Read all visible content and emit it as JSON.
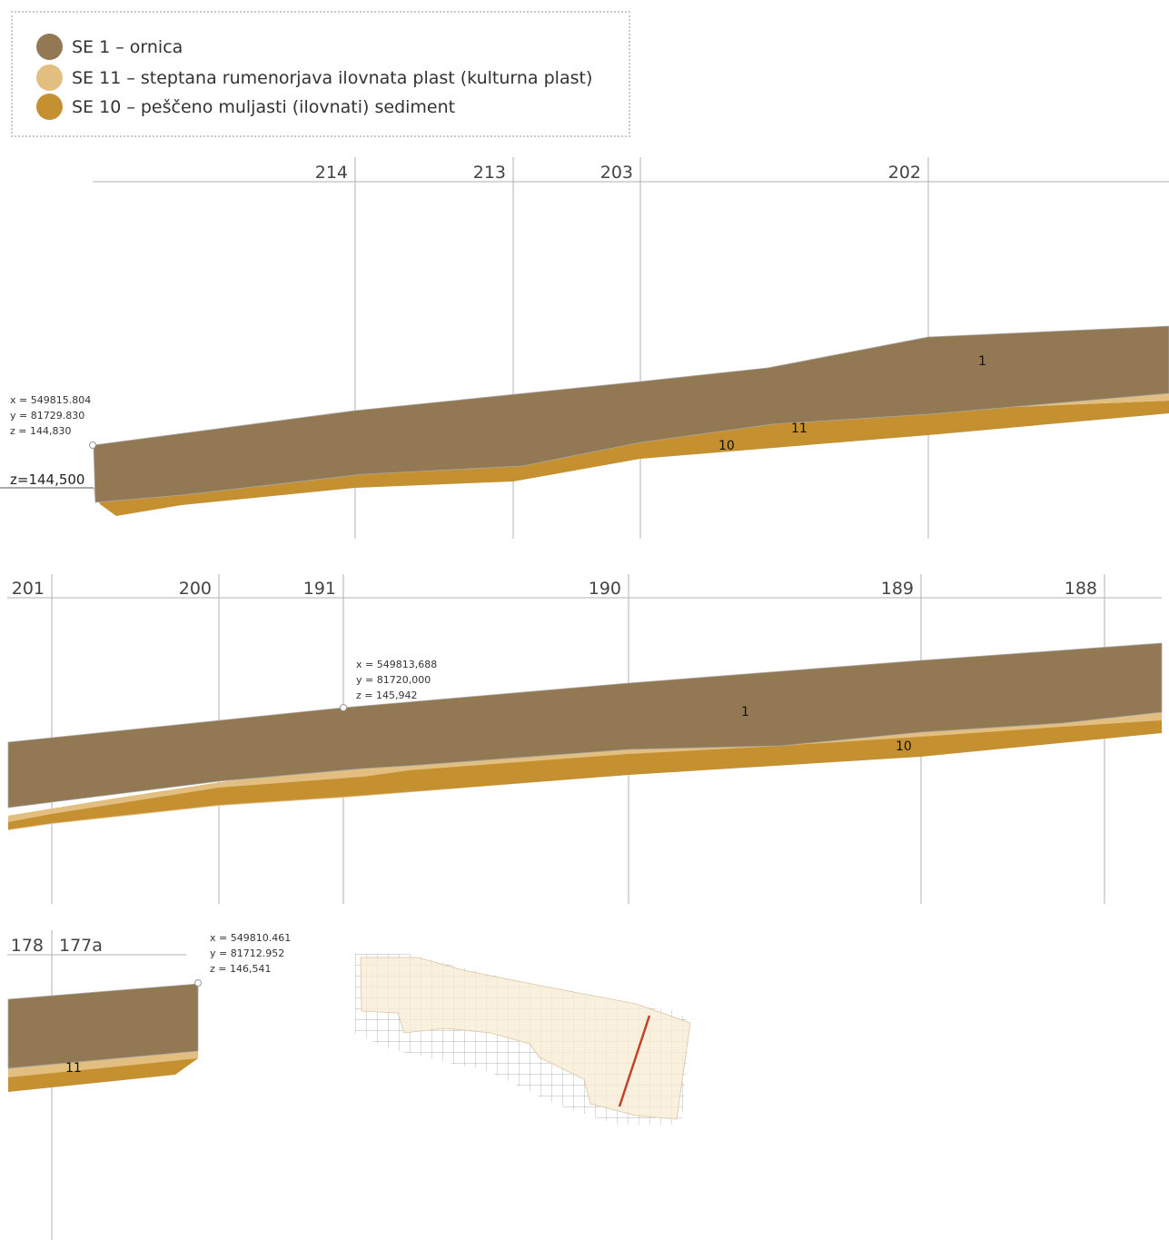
{
  "legend": {
    "items": [
      {
        "label": "SE 1 – ornica",
        "color": "#927853"
      },
      {
        "label": "SE 11 – steptana rumenorjava ilovnata plast (kulturna plast)",
        "color": "#e2bf80"
      },
      {
        "label": "SE 10 – peščeno muljasti (ilovnati) sediment",
        "color": "#c5902f"
      }
    ]
  },
  "colors": {
    "se1": "#927853",
    "se11": "#e2bf80",
    "se10": "#c5902f",
    "grid_line": "#b0b0b0",
    "plan_fill": "#f8ecd6",
    "section_line": "#c0432a"
  },
  "profile1": {
    "markers": [
      "214",
      "213",
      "203",
      "202"
    ],
    "coord": {
      "x": "x = 549815.804",
      "y": "y = 81729.830",
      "z": "z = 144,830"
    },
    "z_label": "z=144,500",
    "layer_labels": [
      "1",
      "11",
      "10"
    ]
  },
  "profile2": {
    "markers": [
      "201",
      "200",
      "191",
      "190",
      "189",
      "188"
    ],
    "coord": {
      "x": "x = 549813,688",
      "y": "y = 81720,000",
      "z": "z = 145,942"
    },
    "layer_labels": [
      "1",
      "10"
    ]
  },
  "profile3": {
    "markers": [
      "178",
      "177a"
    ],
    "coord": {
      "x": "x = 549810.461",
      "y": "y = 81712.952",
      "z": "z = 146,541"
    },
    "layer_labels": [
      "11"
    ]
  }
}
